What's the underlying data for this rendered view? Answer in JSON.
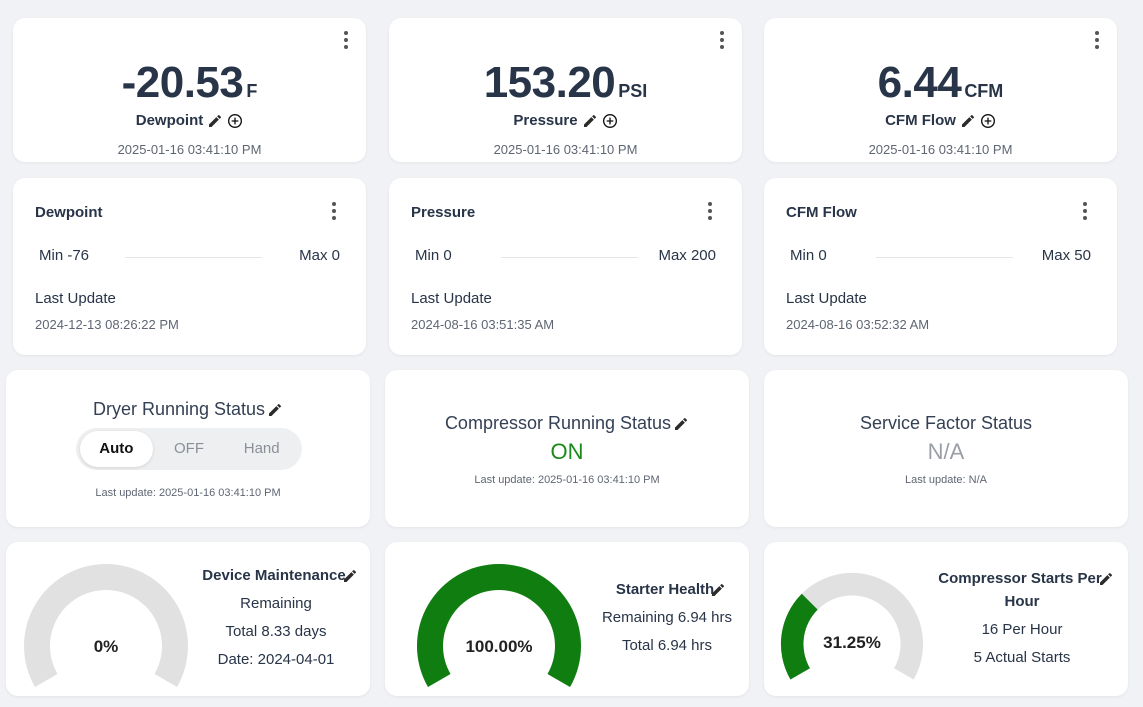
{
  "readings": [
    {
      "value": "-20.53",
      "unit": "F",
      "label": "Dewpoint",
      "timestamp": "2025-01-16 03:41:10 PM"
    },
    {
      "value": "153.20",
      "unit": "PSI",
      "label": "Pressure",
      "timestamp": "2025-01-16 03:41:10 PM"
    },
    {
      "value": "6.44",
      "unit": "CFM",
      "label": "CFM Flow",
      "timestamp": "2025-01-16 03:41:10 PM"
    }
  ],
  "ranges": [
    {
      "title": "Dewpoint",
      "min": "Min -76",
      "max": "Max 0",
      "last_update_label": "Last Update",
      "timestamp": "2024-12-13 08:26:22 PM"
    },
    {
      "title": "Pressure",
      "min": "Min 0",
      "max": "Max 200",
      "last_update_label": "Last Update",
      "timestamp": "2024-08-16 03:51:35 AM"
    },
    {
      "title": "CFM Flow",
      "min": "Min 0",
      "max": "Max 50",
      "last_update_label": "Last Update",
      "timestamp": "2024-08-16 03:52:32 AM"
    }
  ],
  "dryer": {
    "title": "Dryer Running Status",
    "options": [
      "Auto",
      "OFF",
      "Hand"
    ],
    "selected": "Auto",
    "last_update": "Last update: 2025-01-16 03:41:10 PM"
  },
  "compressor": {
    "title": "Compressor Running Status",
    "state": "ON",
    "state_color": "#1a8a1a",
    "last_update": "Last update: 2025-01-16 03:41:10 PM"
  },
  "service_factor": {
    "title": "Service Factor Status",
    "state": "N/A",
    "state_color": "#9a9ea6",
    "last_update": "Last update: N/A"
  },
  "gauges": {
    "maintenance": {
      "percent_label": "0%",
      "percent": 0,
      "title": "Device Maintenance",
      "line1": "Remaining",
      "line2": "Total 8.33 days",
      "line3": "Date: 2024-04-01"
    },
    "starter": {
      "percent_label": "100.00%",
      "percent": 100,
      "title": "Starter Health",
      "line1": "Remaining 6.94 hrs",
      "line2": "Total 6.94 hrs"
    },
    "starts": {
      "percent_label": "31.25%",
      "percent": 31.25,
      "title_line1": "Compressor Starts Per",
      "title_line2": "Hour",
      "line1": "16 Per Hour",
      "line2": "5 Actual Starts"
    }
  },
  "colors": {
    "gauge_fill": "#0f7d0f",
    "gauge_track": "#e1e1e1",
    "accent_on": "#1a8a1a"
  },
  "icons": [
    "pencil-icon",
    "add-circle-icon",
    "kebab-menu-icon"
  ]
}
